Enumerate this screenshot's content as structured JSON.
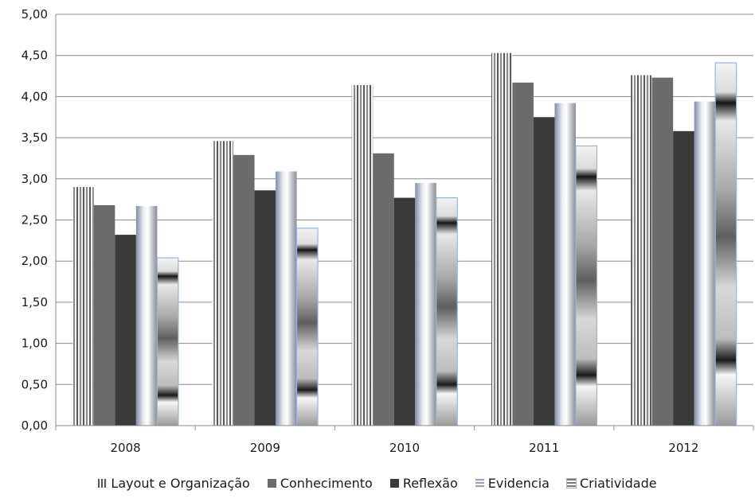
{
  "chart_data": {
    "type": "bar",
    "categories": [
      "2008",
      "2009",
      "2010",
      "2011",
      "2012"
    ],
    "series": [
      {
        "name": "Layout e Organização",
        "values": [
          2.9,
          3.46,
          4.14,
          4.53,
          4.26
        ],
        "style": "vertical-stripes"
      },
      {
        "name": "Conhecimento",
        "values": [
          2.68,
          3.29,
          3.31,
          4.17,
          4.23
        ],
        "style": "solid",
        "color": "#6b6b6b"
      },
      {
        "name": "Reflexão",
        "values": [
          2.32,
          2.86,
          2.77,
          3.75,
          3.58
        ],
        "style": "solid",
        "color": "#3a3a3a"
      },
      {
        "name": "Evidencia",
        "values": [
          2.67,
          3.09,
          2.95,
          3.92,
          3.94
        ],
        "style": "horizontal-gradient"
      },
      {
        "name": "Criatividade",
        "values": [
          2.04,
          2.4,
          2.77,
          3.4,
          4.41
        ],
        "style": "vertical-gradient"
      }
    ],
    "ylim": [
      0,
      5
    ],
    "yticks": [
      "0,00",
      "0,50",
      "1,00",
      "1,50",
      "2,00",
      "2,50",
      "3,00",
      "3,50",
      "4,00",
      "4,50",
      "5,00"
    ],
    "ytick_values": [
      0,
      0.5,
      1,
      1.5,
      2,
      2.5,
      3,
      3.5,
      4,
      4.5,
      5
    ],
    "grid": true,
    "legend_position": "bottom",
    "title": "",
    "xlabel": "",
    "ylabel": ""
  }
}
